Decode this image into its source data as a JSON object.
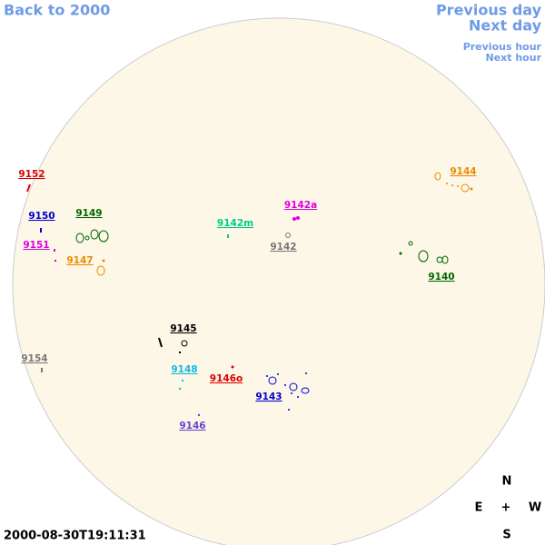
{
  "navigation": {
    "back": "Back to 2000",
    "previous_day": "Previous day",
    "next_day": "Next day",
    "previous_hour": "Previous hour",
    "next_hour": "Next hour"
  },
  "regions": [
    "9152",
    "9150",
    "9149",
    "9151",
    "9147",
    "9142m",
    "9142a",
    "9142",
    "9144",
    "9140",
    "9145",
    "9154",
    "9148",
    "9146o",
    "9143",
    "9146"
  ],
  "compass": {
    "north": "N",
    "east": "E",
    "center": "+",
    "west": "W",
    "south": "S"
  },
  "timestamp": "2000-08-30T19:11:31"
}
